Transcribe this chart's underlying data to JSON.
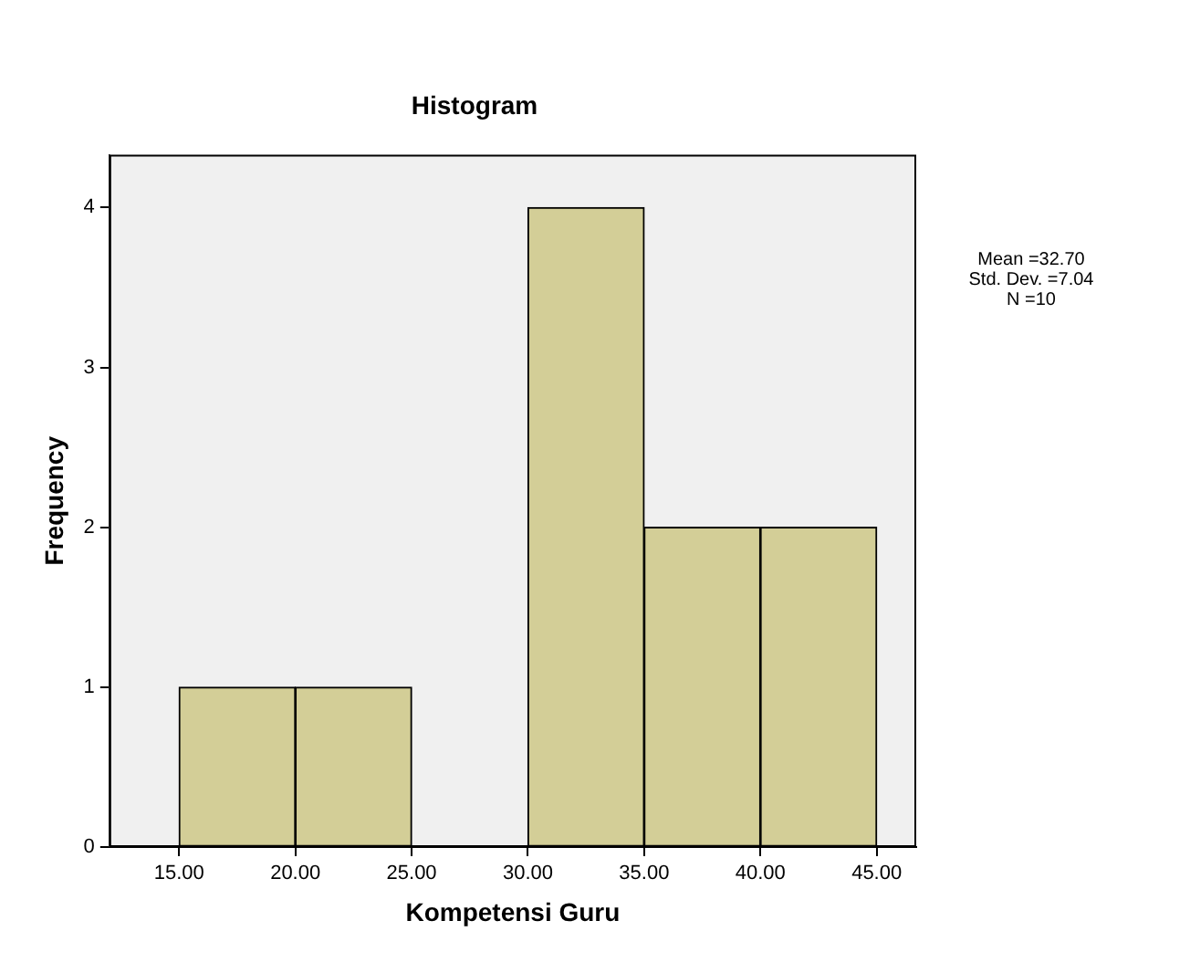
{
  "chart_data": {
    "type": "histogram",
    "title": "Histogram",
    "xlabel": "Kompetensi Guru",
    "ylabel": "Frequency",
    "bins": [
      15,
      20,
      25,
      30,
      35,
      40,
      45
    ],
    "values": [
      1,
      1,
      0,
      4,
      2,
      2
    ],
    "color": "#d3ce97",
    "xlim": [
      12.0,
      46.7
    ],
    "ylim": [
      0,
      4.33
    ],
    "xticks": [
      {
        "value": 15,
        "label": "15.00"
      },
      {
        "value": 20,
        "label": "20.00"
      },
      {
        "value": 25,
        "label": "25.00"
      },
      {
        "value": 30,
        "label": "30.00"
      },
      {
        "value": 35,
        "label": "35.00"
      },
      {
        "value": 40,
        "label": "40.00"
      },
      {
        "value": 45,
        "label": "45.00"
      }
    ],
    "yticks": [
      0,
      1,
      2,
      3,
      4
    ],
    "grid": false,
    "legend": false,
    "annotations": [
      "Mean =32.70",
      "Std. Dev. =7.04",
      "N =10"
    ]
  }
}
